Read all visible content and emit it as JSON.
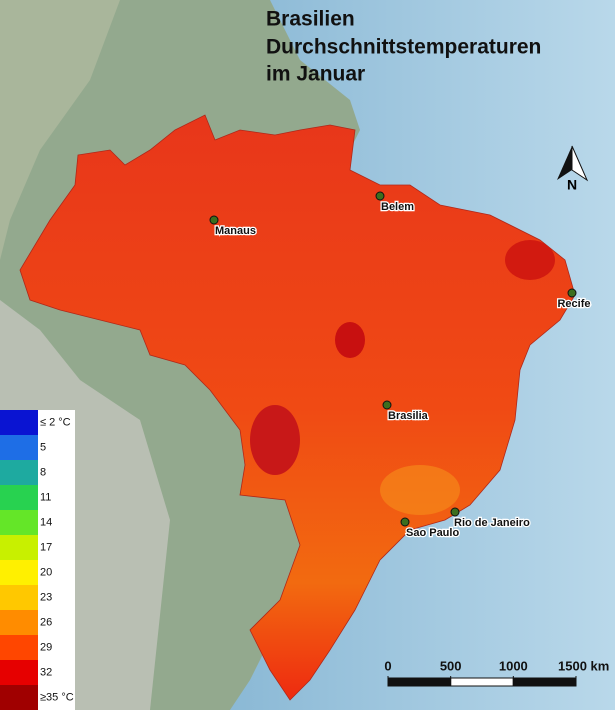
{
  "title": [
    "Brasilien",
    "Durchschnittstemperaturen",
    "im Januar"
  ],
  "cities": [
    "Manaus",
    "Belem",
    "Recife",
    "Brasilia",
    "Rio de Janeiro",
    "Sao Paulo"
  ],
  "north_label": "N",
  "legend": {
    "ticks": [
      {
        "value": 2,
        "label": "≤ 2 °C"
      },
      5,
      8,
      11,
      14,
      17,
      20,
      23,
      26,
      29,
      32,
      {
        "value": 35,
        "label": "≥35 °C"
      }
    ],
    "colors": [
      "#0a14d2",
      "#1e6ee6",
      "#1eaaa0",
      "#28d250",
      "#64e628",
      "#c8f000",
      "#fff000",
      "#ffc800",
      "#ff8c00",
      "#ff4600",
      "#e60000",
      "#a00000"
    ]
  },
  "scale_bar": {
    "ticks": [
      0,
      500,
      1000,
      {
        "value": 1500,
        "label": "1500 km"
      }
    ]
  }
}
